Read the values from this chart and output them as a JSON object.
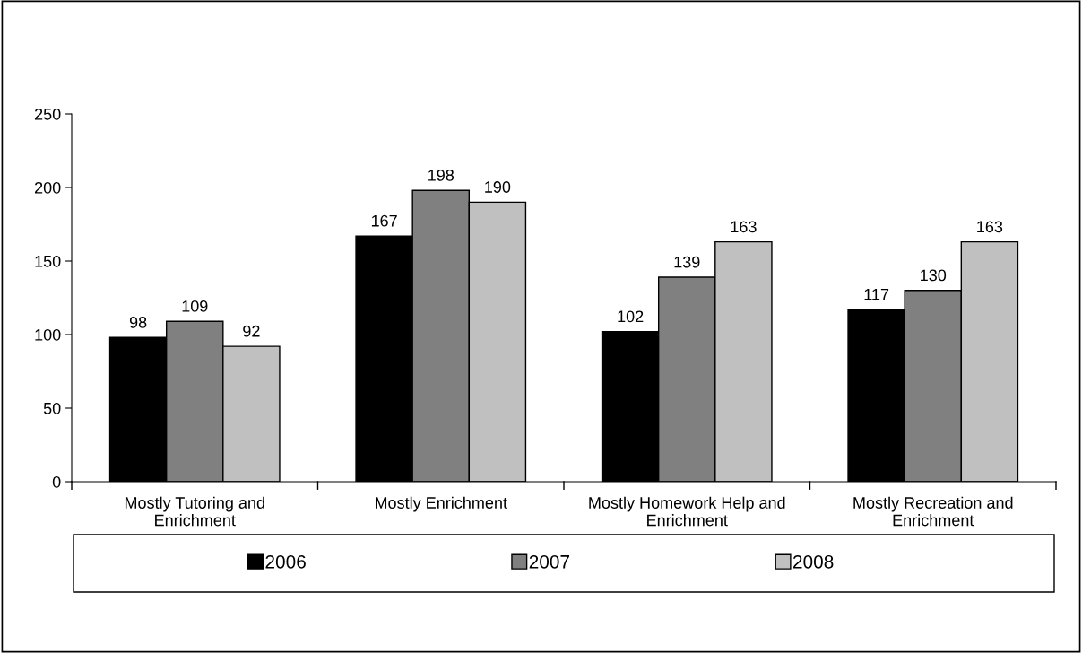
{
  "chart_data": {
    "type": "bar",
    "categories": [
      "Mostly Tutoring and\nEnrichment",
      "Mostly Enrichment",
      "Mostly Homework Help and\nEnrichment",
      "Mostly Recreation and\nEnrichment"
    ],
    "series": [
      {
        "name": "2006",
        "color": "#000000",
        "values": [
          98,
          167,
          102,
          117
        ]
      },
      {
        "name": "2007",
        "color": "#808080",
        "values": [
          109,
          198,
          139,
          130
        ]
      },
      {
        "name": "2008",
        "color": "#c0c0c0",
        "values": [
          92,
          190,
          163,
          163
        ]
      }
    ],
    "ylim": [
      0,
      250
    ],
    "yticks": [
      0,
      50,
      100,
      150,
      200,
      250
    ],
    "data_labels": true,
    "legend": "bottom",
    "grid": false
  }
}
